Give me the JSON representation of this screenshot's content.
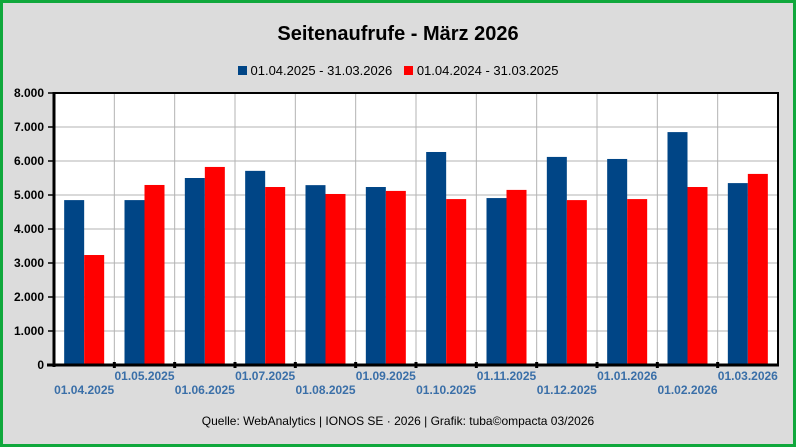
{
  "chart_data": {
    "type": "bar",
    "title": "Seitenaufrufe - März 2026",
    "xlabel": "",
    "ylabel": "",
    "ylim": [
      0,
      8000
    ],
    "yticks": [
      "0",
      "1.000",
      "2.000",
      "3.000",
      "4.000",
      "5.000",
      "6.000",
      "7.000",
      "8.000"
    ],
    "grid": true,
    "legend_position": "top-center",
    "categories": [
      "01.04.2025",
      "01.05.2025",
      "01.06.2025",
      "01.07.2025",
      "01.08.2025",
      "01.09.2025",
      "01.10.2025",
      "01.11.2025",
      "01.12.2025",
      "01.01.2026",
      "01.02.2026",
      "01.03.2026"
    ],
    "series": [
      {
        "name": "01.04.2025 - 31.03.2026",
        "color": "#004586",
        "values": [
          4850,
          4850,
          5500,
          5710,
          5290,
          5235,
          6265,
          4910,
          6120,
          6060,
          6850,
          5350
        ]
      },
      {
        "name": "01.04.2024 - 31.03.2025",
        "color": "#ff0000",
        "values": [
          3235,
          5295,
          5825,
          5235,
          5030,
          5120,
          4880,
          5150,
          4850,
          4880,
          5235,
          5620
        ]
      }
    ],
    "source": "Quelle: WebAnalytics | IONOS SE · 2026 | Grafik: tuba©ompacta 03/2026"
  }
}
